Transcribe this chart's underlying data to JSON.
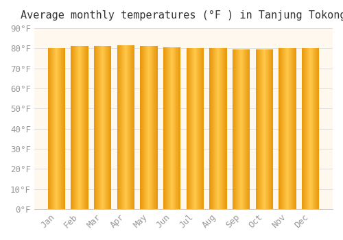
{
  "title": "Average monthly temperatures (°F ) in Tanjung Tokong",
  "months": [
    "Jan",
    "Feb",
    "Mar",
    "Apr",
    "May",
    "Jun",
    "Jul",
    "Aug",
    "Sep",
    "Oct",
    "Nov",
    "Dec"
  ],
  "values": [
    80,
    81,
    81,
    81.5,
    81,
    80.5,
    80,
    80,
    79.5,
    79.5,
    80,
    80
  ],
  "ylim": [
    0,
    90
  ],
  "yticks": [
    0,
    10,
    20,
    30,
    40,
    50,
    60,
    70,
    80,
    90
  ],
  "ytick_labels": [
    "0°F",
    "10°F",
    "20°F",
    "30°F",
    "40°F",
    "50°F",
    "60°F",
    "70°F",
    "80°F",
    "90°F"
  ],
  "bar_color_left": "#E8960A",
  "bar_color_center": "#FFC84A",
  "bar_color_right": "#E8960A",
  "background_color": "#FFF8EE",
  "grid_color": "#DDDDDD",
  "title_fontsize": 11,
  "tick_fontsize": 9,
  "bar_width": 0.75,
  "figure_bg": "#FFFFFF"
}
